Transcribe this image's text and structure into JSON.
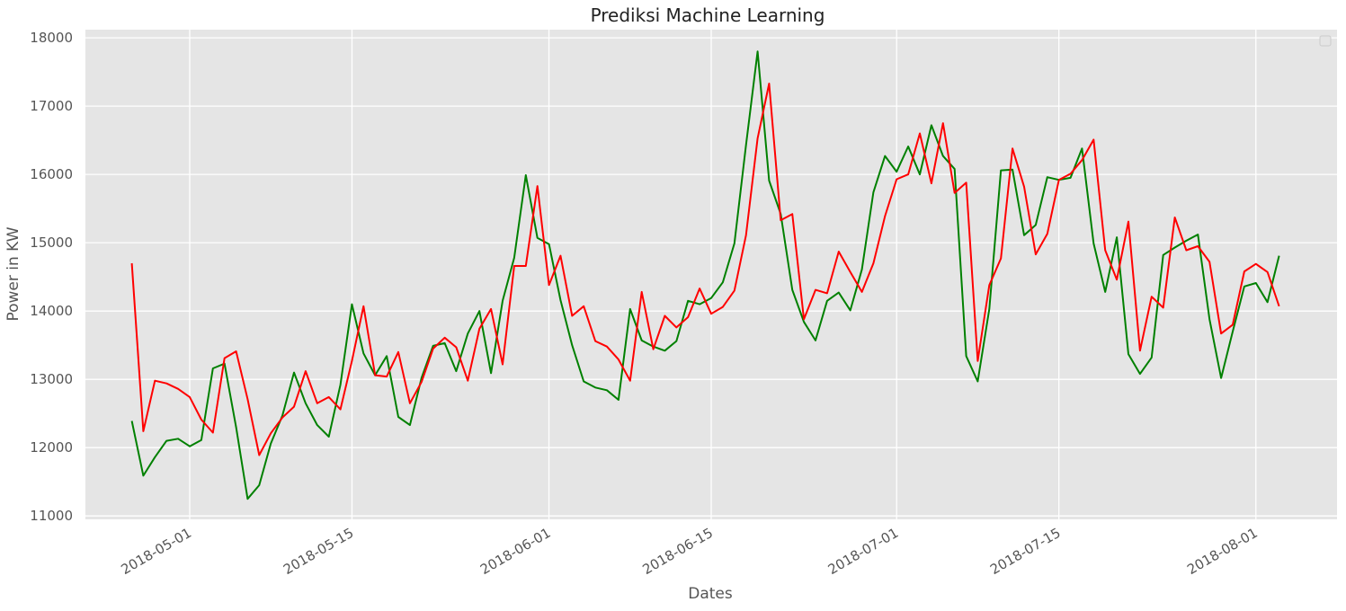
{
  "chart_data": {
    "type": "line",
    "title": "Prediksi Machine Learning",
    "xlabel": "Dates",
    "ylabel": "Power in KW",
    "x_tick_labels": [
      "2018-05-01",
      "2018-05-15",
      "2018-06-01",
      "2018-06-15",
      "2018-07-01",
      "2018-07-15",
      "2018-08-01"
    ],
    "y_tick_labels": [
      "11000",
      "12000",
      "13000",
      "14000",
      "15000",
      "16000",
      "17000",
      "18000"
    ],
    "y_ticks": [
      11000,
      12000,
      13000,
      14000,
      15000,
      16000,
      17000,
      18000
    ],
    "ylim": [
      10950,
      18120
    ],
    "xlim": [
      "2018-04-22",
      "2018-08-08"
    ],
    "grid": true,
    "legend": "top-right",
    "x": [
      "2018-04-26",
      "2018-04-27",
      "2018-04-28",
      "2018-04-29",
      "2018-04-30",
      "2018-05-01",
      "2018-05-02",
      "2018-05-03",
      "2018-05-04",
      "2018-05-05",
      "2018-05-06",
      "2018-05-07",
      "2018-05-08",
      "2018-05-09",
      "2018-05-10",
      "2018-05-11",
      "2018-05-12",
      "2018-05-13",
      "2018-05-14",
      "2018-05-15",
      "2018-05-16",
      "2018-05-17",
      "2018-05-18",
      "2018-05-19",
      "2018-05-20",
      "2018-05-21",
      "2018-05-22",
      "2018-05-23",
      "2018-05-24",
      "2018-05-25",
      "2018-05-26",
      "2018-05-27",
      "2018-05-28",
      "2018-05-29",
      "2018-05-30",
      "2018-05-31",
      "2018-06-01",
      "2018-06-02",
      "2018-06-03",
      "2018-06-04",
      "2018-06-05",
      "2018-06-06",
      "2018-06-07",
      "2018-06-08",
      "2018-06-09",
      "2018-06-10",
      "2018-06-11",
      "2018-06-12",
      "2018-06-13",
      "2018-06-14",
      "2018-06-15",
      "2018-06-16",
      "2018-06-17",
      "2018-06-18",
      "2018-06-19",
      "2018-06-20",
      "2018-06-21",
      "2018-06-22",
      "2018-06-23",
      "2018-06-24",
      "2018-06-25",
      "2018-06-26",
      "2018-06-27",
      "2018-06-28",
      "2018-06-29",
      "2018-06-30",
      "2018-07-01",
      "2018-07-02",
      "2018-07-03",
      "2018-07-04",
      "2018-07-05",
      "2018-07-06",
      "2018-07-07",
      "2018-07-08",
      "2018-07-09",
      "2018-07-10",
      "2018-07-11",
      "2018-07-12",
      "2018-07-13",
      "2018-07-14",
      "2018-07-15",
      "2018-07-16",
      "2018-07-17",
      "2018-07-18",
      "2018-07-19",
      "2018-07-20",
      "2018-07-21",
      "2018-07-22",
      "2018-07-23",
      "2018-07-24",
      "2018-07-25",
      "2018-07-26",
      "2018-07-27",
      "2018-07-28",
      "2018-07-29",
      "2018-07-30",
      "2018-07-31",
      "2018-08-01",
      "2018-08-02",
      "2018-08-03"
    ],
    "series": [
      {
        "color": "#008000",
        "values": [
          12390,
          11590,
          11860,
          12100,
          12130,
          12020,
          12110,
          13160,
          13230,
          12300,
          11250,
          11450,
          12060,
          12470,
          13100,
          12650,
          12330,
          12160,
          12920,
          14100,
          13380,
          13060,
          13340,
          12450,
          12330,
          13020,
          13490,
          13530,
          13120,
          13670,
          14000,
          13090,
          14150,
          14780,
          15990,
          15070,
          14980,
          14160,
          13500,
          12970,
          12880,
          12840,
          12700,
          14030,
          13570,
          13480,
          13420,
          13560,
          14150,
          14100,
          14190,
          14420,
          14990,
          16430,
          17800,
          15910,
          15420,
          14310,
          13840,
          13570,
          14150,
          14270,
          14010,
          14610,
          15740,
          16270,
          16040,
          16410,
          16000,
          16720,
          16270,
          16080,
          13340,
          12970,
          14030,
          16060,
          16070,
          15110,
          15260,
          15960,
          15920,
          15950,
          16380,
          14990,
          14280,
          15080,
          13370,
          13080,
          13320,
          14820,
          14930,
          15030,
          15120,
          13880,
          13020,
          13700,
          14360,
          14410,
          14130,
          14810
        ]
      },
      {
        "color": "#ff0000",
        "values": [
          14700,
          12240,
          12980,
          12940,
          12860,
          12740,
          12410,
          12220,
          13310,
          13410,
          12710,
          11890,
          12210,
          12440,
          12600,
          13120,
          12650,
          12740,
          12560,
          13270,
          14070,
          13060,
          13040,
          13400,
          12650,
          12960,
          13450,
          13610,
          13470,
          12980,
          13740,
          14030,
          13220,
          14660,
          14660,
          15830,
          14380,
          14810,
          13930,
          14070,
          13560,
          13480,
          13290,
          12980,
          14280,
          13440,
          13930,
          13760,
          13910,
          14330,
          13960,
          14060,
          14300,
          15110,
          16530,
          17330,
          15330,
          15420,
          13880,
          14310,
          14260,
          14870,
          14570,
          14280,
          14700,
          15390,
          15930,
          16000,
          16600,
          15870,
          16750,
          15730,
          15880,
          13270,
          14380,
          14770,
          16380,
          15820,
          14830,
          15130,
          15920,
          16010,
          16210,
          16510,
          14890,
          14460,
          15310,
          13420,
          14210,
          14050,
          15370,
          14890,
          14950,
          14720,
          13670,
          13800,
          14580,
          14690,
          14570,
          14070
        ]
      }
    ]
  }
}
